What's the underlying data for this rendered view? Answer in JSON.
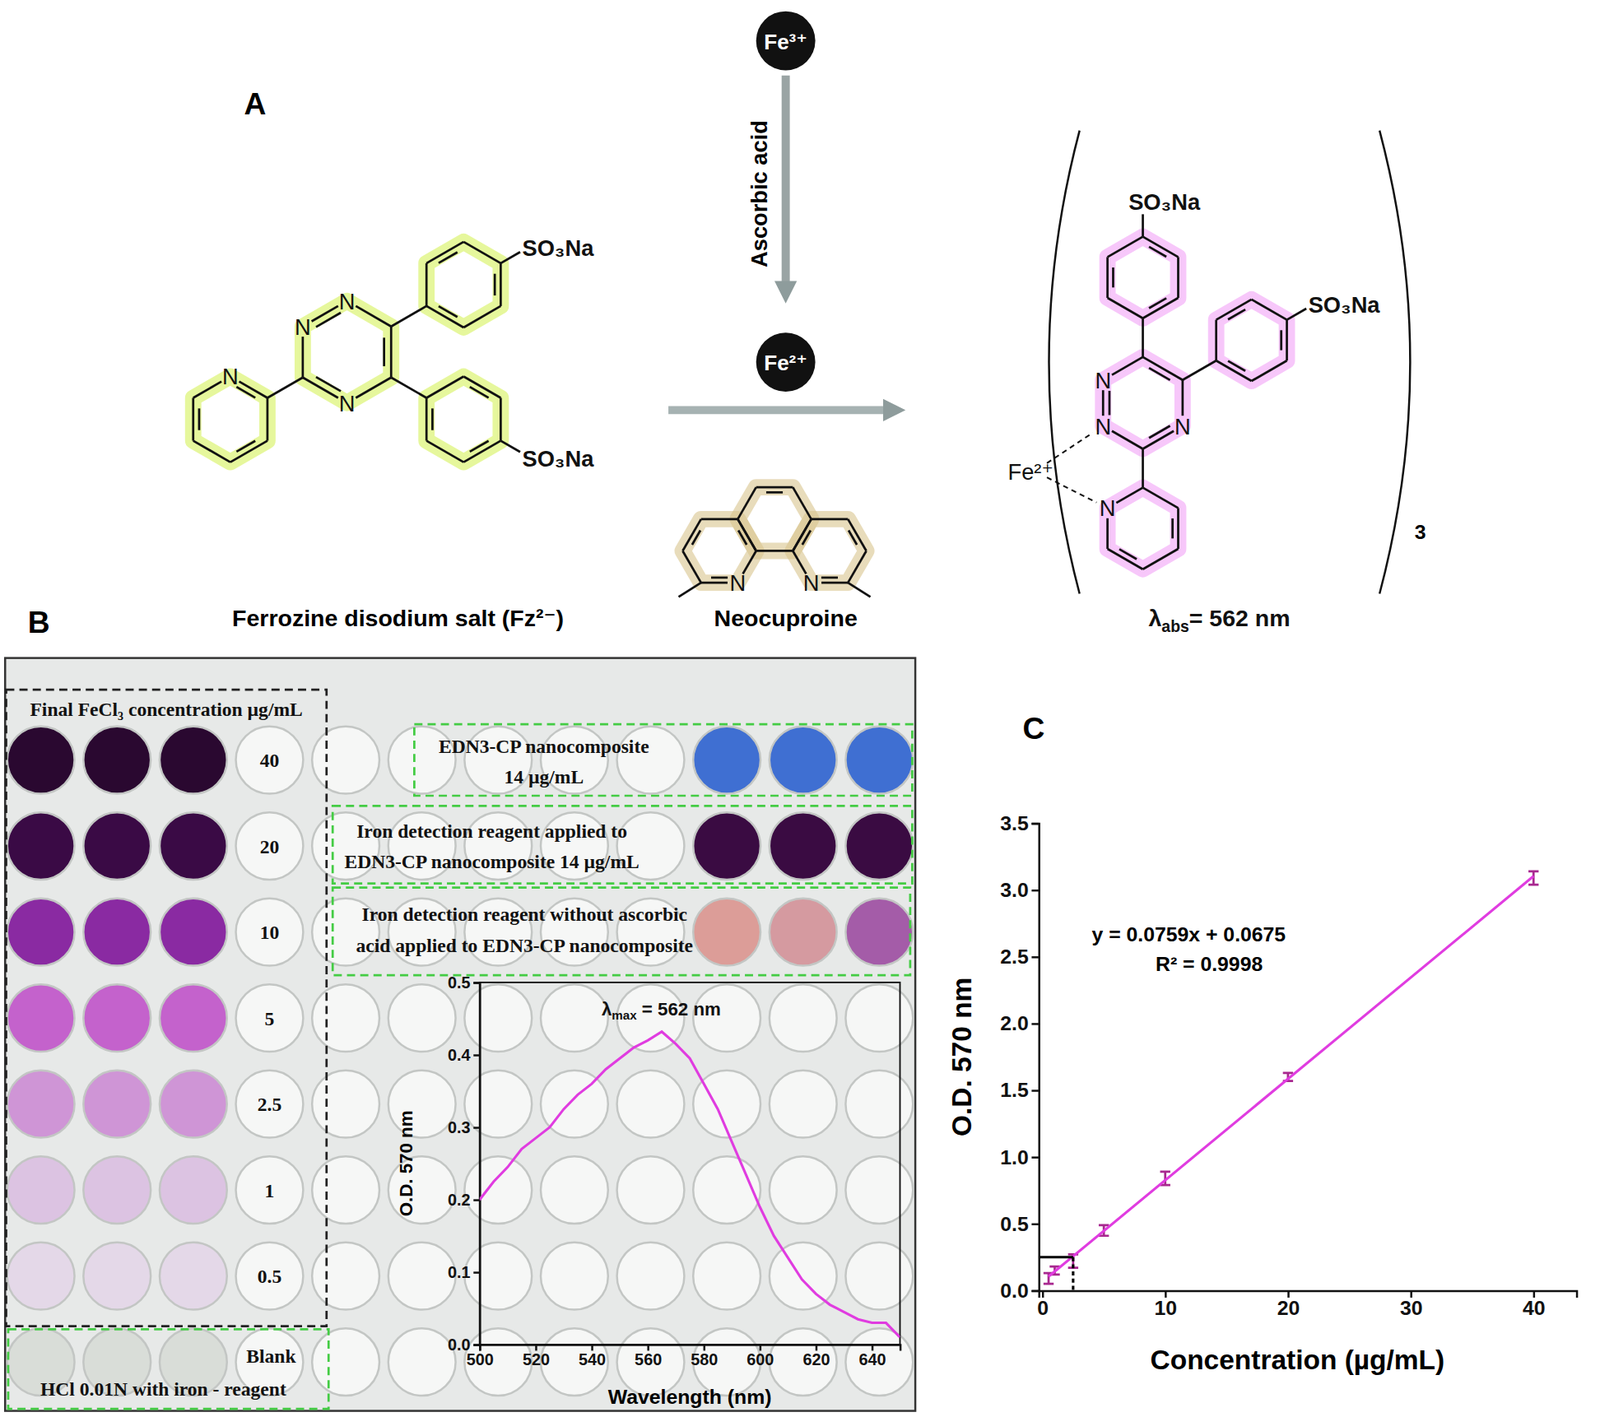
{
  "panels": [
    "A",
    "B",
    "C"
  ],
  "diagram": {
    "oxidized_ion": "Fe³⁺",
    "reduced_ion": "Fe²⁺",
    "reductant": "Ascorbic acid",
    "ferrozine": {
      "label": "Ferrozine disodium salt (Fz²⁻)",
      "atoms": [
        "N",
        "N",
        "N",
        "N"
      ],
      "substituents": [
        "SO₃Na",
        "SO₃Na"
      ]
    },
    "neocuproine": {
      "label": "Neocuproine",
      "atoms": [
        "N",
        "N"
      ]
    },
    "complex": {
      "ion": "Fe²⁺",
      "atoms": [
        "N",
        "N",
        "N",
        "N"
      ],
      "substituents": [
        "SO₃Na",
        "SO₃Na"
      ],
      "count": 3,
      "label": [
        "λ",
        "abs",
        "= 562 nm"
      ]
    }
  },
  "plate": {
    "title": "Final FeCl₃ concentration µg/mL",
    "concentrations": [
      40,
      20,
      10,
      5,
      2.5,
      1,
      0.5
    ],
    "blank": [
      "Blank",
      "HCl 0.01N with iron - reagent"
    ],
    "groups": [
      [
        "EDN3-CP nanocomposite",
        "14 µg/mL"
      ],
      [
        "Iron detection reagent applied to",
        "EDN3-CP nanocomposite 14 µg/mL"
      ],
      [
        "Iron detection reagent without ascorbic",
        "acid applied to EDN3-CP nanocomposite"
      ]
    ]
  },
  "chart_data": [
    {
      "type": "line",
      "title": [
        "λ",
        "max",
        " = 562 nm"
      ],
      "x_label": "Wavelength (nm)",
      "y_label": "O.D. 570 nm",
      "xlim": [
        500,
        650
      ],
      "xticks": [
        500,
        520,
        540,
        560,
        580,
        600,
        620,
        640
      ],
      "ylim": [
        0,
        0.5
      ],
      "yticks": [
        {
          "value": 0,
          "label": "0.0"
        },
        0.1,
        0.2,
        0.3,
        0.4,
        0.5
      ],
      "x": [
        500,
        505,
        510,
        515,
        520,
        525,
        530,
        535,
        540,
        545,
        550,
        555,
        560,
        565,
        570,
        575,
        580,
        585,
        590,
        595,
        600,
        605,
        610,
        615,
        620,
        625,
        630,
        635,
        640,
        645,
        650
      ],
      "series": [
        {
          "color": "#e03ce0",
          "values": [
            0.2,
            0.225,
            0.245,
            0.27,
            0.285,
            0.3,
            0.325,
            0.345,
            0.36,
            0.38,
            0.395,
            0.41,
            0.42,
            0.432,
            0.415,
            0.395,
            0.36,
            0.325,
            0.28,
            0.235,
            0.19,
            0.15,
            0.12,
            0.09,
            0.07,
            0.055,
            0.045,
            0.035,
            0.03,
            0.03,
            0.01
          ]
        }
      ]
    },
    {
      "type": "scatter",
      "annotations": [
        "y = 0.0759x + 0.0675",
        "R² = 0.9998"
      ],
      "x_label": "Concentration (µg/mL)",
      "y_label": "O.D. 570 nm",
      "xlim": [
        -0.3,
        43.5
      ],
      "xticks": [
        0,
        10,
        20,
        30,
        40
      ],
      "ylim": [
        0,
        3.5
      ],
      "yticks": [
        {
          "value": 0,
          "label": "0.0"
        },
        0.5,
        {
          "value": 1,
          "label": "1.0"
        },
        1.5,
        {
          "value": 2,
          "label": "2.0"
        },
        2.5,
        {
          "value": 3,
          "label": "3.0"
        },
        3.5
      ],
      "series": [
        {
          "type": "scatter",
          "color": "#a8288f",
          "x": [
            0.5,
            1,
            2.5,
            5,
            10,
            20,
            40
          ],
          "values": [
            0.09,
            0.15,
            0.22,
            0.45,
            0.84,
            1.6,
            3.09
          ],
          "errors": [
            0.04,
            0.03,
            0.05,
            0.04,
            0.05,
            0.03,
            0.05
          ]
        },
        {
          "type": "line",
          "color": "#e03ce0",
          "line_style": "solid",
          "x": [
            0.5,
            40
          ],
          "values": [
            0.105,
            3.1035
          ]
        },
        {
          "type": "line",
          "color": "#000000",
          "line_style": "solid",
          "x": [
            -0.3,
            2.5
          ],
          "values": [
            0.25,
            0.25
          ]
        },
        {
          "type": "line",
          "color": "#000000",
          "line_style": "dashed",
          "x": [
            2.5,
            2.5
          ],
          "values": [
            0.25,
            0
          ]
        }
      ]
    }
  ]
}
